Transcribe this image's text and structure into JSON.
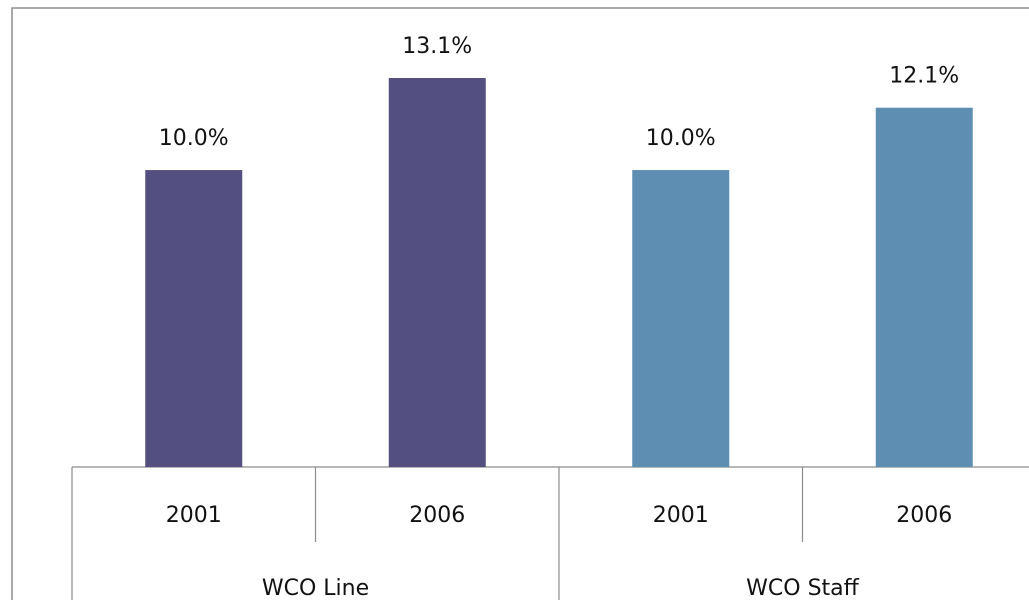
{
  "chart_data": {
    "type": "bar",
    "groups": [
      {
        "name": "WCO Line",
        "categories": [
          "2001",
          "2006"
        ],
        "values": [
          10.0,
          13.1
        ],
        "value_labels": [
          "10.0%",
          "13.1%"
        ],
        "color": "#534f80"
      },
      {
        "name": "WCO Staff",
        "categories": [
          "2001",
          "2006"
        ],
        "values": [
          10.0,
          12.1
        ],
        "value_labels": [
          "10.0%",
          "12.1%"
        ],
        "color": "#5e8fb3"
      }
    ]
  }
}
